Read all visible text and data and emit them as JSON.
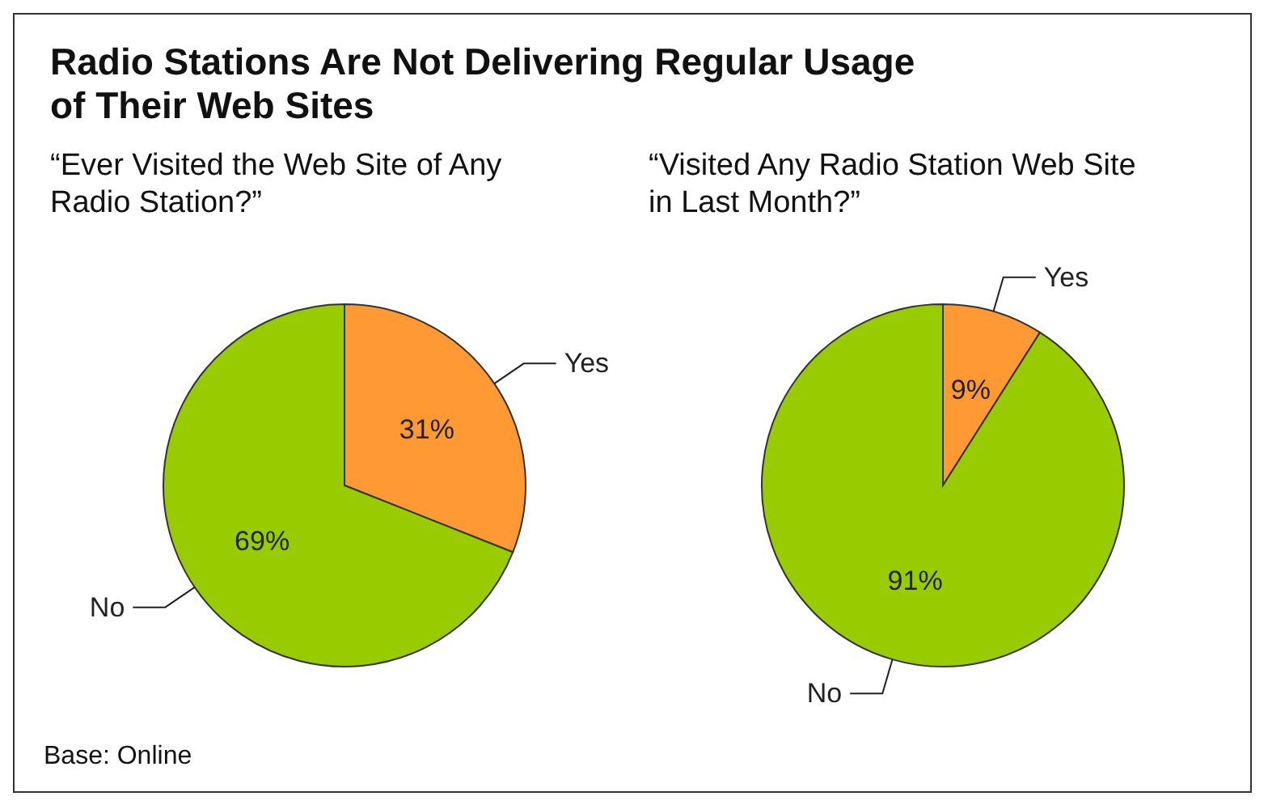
{
  "chart_data": [
    {
      "type": "pie",
      "title": "Radio Stations Are Not Delivering Regular Usage of Their Web Sites",
      "subtitle": "“Ever Visited the Web Site of Any Radio Station?”",
      "categories": [
        "Yes",
        "No"
      ],
      "values": [
        31,
        69
      ],
      "colors": [
        "#ff9933",
        "#99cc00"
      ],
      "value_labels": [
        "31%",
        "69%"
      ],
      "legend": false
    },
    {
      "type": "pie",
      "subtitle": "“Visited Any Radio Station Web Site in Last Month?”",
      "categories": [
        "Yes",
        "No"
      ],
      "values": [
        9,
        91
      ],
      "colors": [
        "#ff9933",
        "#99cc00"
      ],
      "value_labels": [
        "9%",
        "91%"
      ],
      "legend": false,
      "annotations": [
        "Base: Online"
      ]
    }
  ]
}
